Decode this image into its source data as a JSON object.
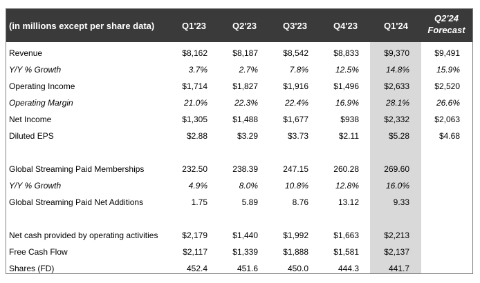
{
  "table": {
    "header_label": "(in millions except per share data)",
    "columns": [
      "Q1'23",
      "Q2'23",
      "Q3'23",
      "Q4'23",
      "Q1'24"
    ],
    "forecast_line1": "Q2'24",
    "forecast_line2": "Forecast",
    "highlight_column": "Q1'24",
    "rows": [
      {
        "label": "Revenue",
        "italic": false,
        "values": [
          "$8,162",
          "$8,187",
          "$8,542",
          "$8,833",
          "$9,370",
          "$9,491"
        ]
      },
      {
        "label": "Y/Y % Growth",
        "italic": true,
        "values": [
          "3.7%",
          "2.7%",
          "7.8%",
          "12.5%",
          "14.8%",
          "15.9%"
        ]
      },
      {
        "label": "Operating Income",
        "italic": false,
        "values": [
          "$1,714",
          "$1,827",
          "$1,916",
          "$1,496",
          "$2,633",
          "$2,520"
        ]
      },
      {
        "label": "Operating Margin",
        "italic": true,
        "values": [
          "21.0%",
          "22.3%",
          "22.4%",
          "16.9%",
          "28.1%",
          "26.6%"
        ]
      },
      {
        "label": "Net Income",
        "italic": false,
        "values": [
          "$1,305",
          "$1,488",
          "$1,677",
          "$938",
          "$2,332",
          "$2,063"
        ]
      },
      {
        "label": "Diluted EPS",
        "italic": false,
        "values": [
          "$2.88",
          "$3.29",
          "$3.73",
          "$2.11",
          "$5.28",
          "$4.68"
        ]
      },
      {
        "label": "Global Streaming Paid Memberships",
        "italic": false,
        "values": [
          "232.50",
          "238.39",
          "247.15",
          "260.28",
          "269.60",
          ""
        ]
      },
      {
        "label": "Y/Y % Growth",
        "italic": true,
        "values": [
          "4.9%",
          "8.0%",
          "10.8%",
          "12.8%",
          "16.0%",
          ""
        ]
      },
      {
        "label": "Global Streaming Paid Net Additions",
        "italic": false,
        "values": [
          "1.75",
          "5.89",
          "8.76",
          "13.12",
          "9.33",
          ""
        ]
      },
      {
        "label": "Net cash provided by operating activities",
        "italic": false,
        "values": [
          "$2,179",
          "$1,440",
          "$1,992",
          "$1,663",
          "$2,213",
          ""
        ]
      },
      {
        "label": "Free Cash Flow",
        "italic": false,
        "values": [
          "$2,117",
          "$1,339",
          "$1,888",
          "$1,581",
          "$2,137",
          ""
        ]
      },
      {
        "label": "Shares (FD)",
        "italic": false,
        "values": [
          "452.4",
          "451.6",
          "450.0",
          "444.3",
          "441.7",
          ""
        ]
      }
    ]
  },
  "colors": {
    "header_bg": "#3a3a3a",
    "header_text": "#ffffff",
    "highlight_bg": "#d9d9d9",
    "border": "#7f7f7f"
  }
}
